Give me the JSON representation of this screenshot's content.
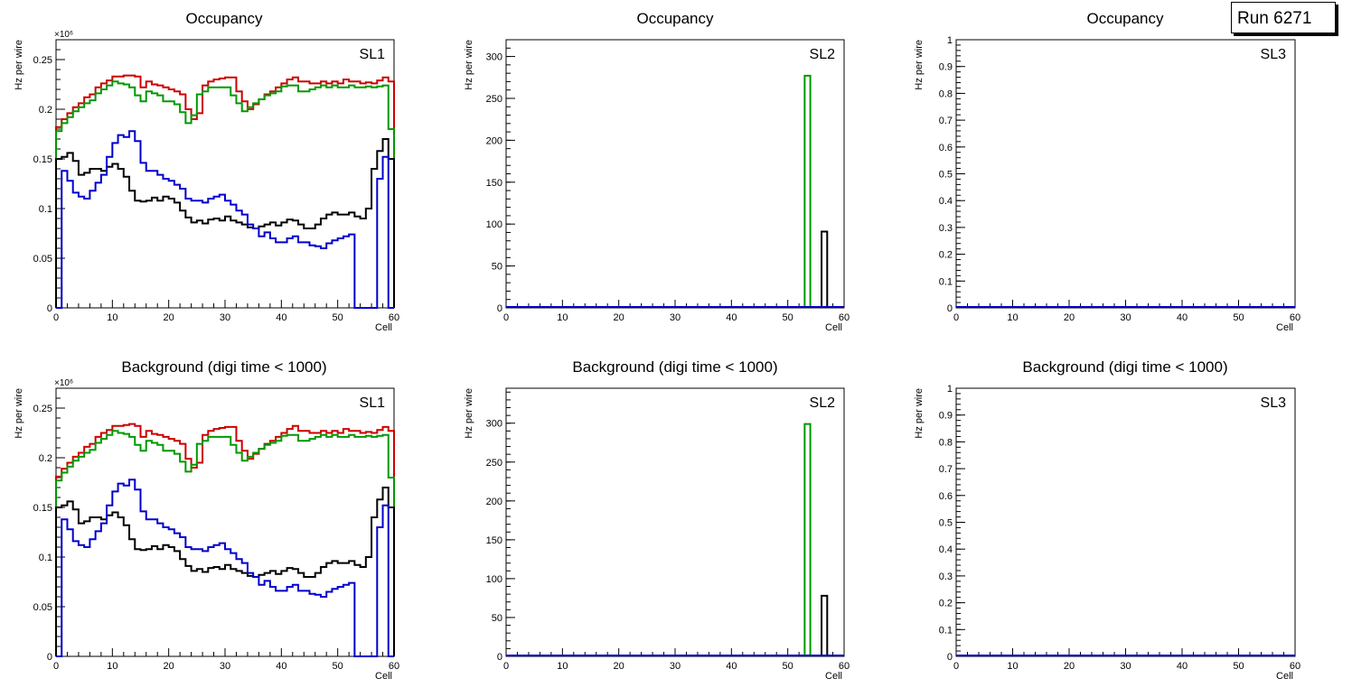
{
  "canvas_label": "Run 6271",
  "colors": {
    "red": "#cc0000",
    "green": "#009900",
    "black": "#000000",
    "blue": "#0000cc"
  },
  "chart_data": [
    {
      "type": "histogram",
      "title": "Occupancy",
      "label": "SL1",
      "xlabel": "Cell",
      "ylabel": "Hz per wire",
      "xlim": [
        0,
        60
      ],
      "ylim": [
        0,
        0.27
      ],
      "multiplier": "×10⁶",
      "xticks": [
        "0",
        "10",
        "20",
        "30",
        "40",
        "50",
        "60"
      ],
      "yticks": [
        "0",
        "0.05",
        "0.1",
        "0.15",
        "0.2",
        "0.25"
      ],
      "series": [
        {
          "name": "red",
          "color": "red",
          "values": [
            0.182,
            0.19,
            0.196,
            0.202,
            0.206,
            0.212,
            0.215,
            0.222,
            0.226,
            0.229,
            0.233,
            0.233,
            0.234,
            0.234,
            0.233,
            0.222,
            0.228,
            0.225,
            0.224,
            0.222,
            0.22,
            0.218,
            0.215,
            0.2,
            0.19,
            0.196,
            0.224,
            0.228,
            0.23,
            0.231,
            0.232,
            0.232,
            0.218,
            0.208,
            0.2,
            0.205,
            0.21,
            0.215,
            0.218,
            0.222,
            0.226,
            0.23,
            0.232,
            0.228,
            0.228,
            0.226,
            0.226,
            0.228,
            0.226,
            0.228,
            0.226,
            0.23,
            0.228,
            0.228,
            0.226,
            0.227,
            0.226,
            0.229,
            0.232,
            0.228
          ]
        },
        {
          "name": "green",
          "color": "green",
          "values": [
            0.178,
            0.186,
            0.192,
            0.198,
            0.202,
            0.206,
            0.209,
            0.216,
            0.22,
            0.224,
            0.228,
            0.226,
            0.225,
            0.222,
            0.214,
            0.208,
            0.218,
            0.216,
            0.214,
            0.208,
            0.208,
            0.205,
            0.197,
            0.186,
            0.194,
            0.215,
            0.218,
            0.222,
            0.222,
            0.222,
            0.222,
            0.214,
            0.206,
            0.198,
            0.202,
            0.206,
            0.21,
            0.214,
            0.216,
            0.218,
            0.223,
            0.224,
            0.224,
            0.218,
            0.218,
            0.22,
            0.222,
            0.224,
            0.222,
            0.224,
            0.222,
            0.222,
            0.224,
            0.222,
            0.222,
            0.223,
            0.222,
            0.223,
            0.224,
            0.18
          ]
        },
        {
          "name": "black",
          "color": "black",
          "values": [
            0.15,
            0.152,
            0.156,
            0.148,
            0.134,
            0.136,
            0.14,
            0.14,
            0.138,
            0.142,
            0.145,
            0.14,
            0.132,
            0.118,
            0.108,
            0.107,
            0.108,
            0.111,
            0.108,
            0.112,
            0.11,
            0.106,
            0.098,
            0.091,
            0.086,
            0.088,
            0.085,
            0.089,
            0.09,
            0.088,
            0.092,
            0.088,
            0.086,
            0.084,
            0.081,
            0.08,
            0.082,
            0.084,
            0.086,
            0.083,
            0.086,
            0.089,
            0.088,
            0.084,
            0.08,
            0.08,
            0.084,
            0.09,
            0.094,
            0.096,
            0.094,
            0.094,
            0.096,
            0.092,
            0.09,
            0.1,
            0.14,
            0.158,
            0.17,
            0.15
          ]
        },
        {
          "name": "blue",
          "color": "blue",
          "values": [
            0.0,
            0.138,
            0.128,
            0.116,
            0.112,
            0.11,
            0.118,
            0.126,
            0.134,
            0.152,
            0.166,
            0.174,
            0.172,
            0.178,
            0.168,
            0.146,
            0.138,
            0.138,
            0.134,
            0.13,
            0.128,
            0.124,
            0.12,
            0.11,
            0.108,
            0.108,
            0.106,
            0.11,
            0.112,
            0.114,
            0.108,
            0.104,
            0.098,
            0.094,
            0.084,
            0.08,
            0.072,
            0.076,
            0.07,
            0.066,
            0.066,
            0.07,
            0.072,
            0.066,
            0.066,
            0.063,
            0.062,
            0.06,
            0.065,
            0.068,
            0.07,
            0.072,
            0.074,
            0.0,
            0.0,
            0.0,
            0.0,
            0.13,
            0.152,
            0.0
          ]
        }
      ]
    },
    {
      "type": "histogram",
      "title": "Occupancy",
      "label": "SL2",
      "xlabel": "Cell",
      "ylabel": "Hz per wire",
      "xlim": [
        0,
        60
      ],
      "ylim": [
        0,
        320
      ],
      "multiplier": "",
      "xticks": [
        "0",
        "10",
        "20",
        "30",
        "40",
        "50",
        "60"
      ],
      "yticks": [
        "0",
        "50",
        "100",
        "150",
        "200",
        "250",
        "300"
      ],
      "series": [
        {
          "name": "green",
          "color": "green",
          "bins": [
            {
              "x0": 53,
              "x1": 54,
              "value": 277
            }
          ]
        },
        {
          "name": "black",
          "color": "black",
          "bins": [
            {
              "x0": 56,
              "x1": 57,
              "value": 91
            }
          ]
        },
        {
          "name": "blue",
          "color": "blue",
          "baseline": true
        }
      ]
    },
    {
      "type": "histogram",
      "title": "Occupancy",
      "label": "SL3",
      "xlabel": "Cell",
      "ylabel": "Hz per wire",
      "xlim": [
        0,
        60
      ],
      "ylim": [
        0,
        1
      ],
      "multiplier": "",
      "xticks": [
        "0",
        "10",
        "20",
        "30",
        "40",
        "50",
        "60"
      ],
      "yticks": [
        "0",
        "0.1",
        "0.2",
        "0.3",
        "0.4",
        "0.5",
        "0.6",
        "0.7",
        "0.8",
        "0.9",
        "1"
      ],
      "series": [
        {
          "name": "blue",
          "color": "blue",
          "baseline": true
        }
      ]
    },
    {
      "type": "histogram",
      "title": "Background (digi time < 1000)",
      "label": "SL1",
      "xlabel": "Cell",
      "ylabel": "Hz per wire",
      "xlim": [
        0,
        60
      ],
      "ylim": [
        0,
        0.27
      ],
      "multiplier": "×10⁶",
      "xticks": [
        "0",
        "10",
        "20",
        "30",
        "40",
        "50",
        "60"
      ],
      "yticks": [
        "0",
        "0.05",
        "0.1",
        "0.15",
        "0.2",
        "0.25"
      ],
      "series": [
        {
          "name": "red",
          "color": "red",
          "values": [
            0.181,
            0.189,
            0.195,
            0.201,
            0.205,
            0.211,
            0.214,
            0.221,
            0.225,
            0.228,
            0.232,
            0.232,
            0.233,
            0.234,
            0.232,
            0.221,
            0.227,
            0.224,
            0.223,
            0.221,
            0.219,
            0.217,
            0.214,
            0.199,
            0.19,
            0.195,
            0.223,
            0.227,
            0.229,
            0.23,
            0.231,
            0.231,
            0.217,
            0.207,
            0.199,
            0.204,
            0.209,
            0.214,
            0.217,
            0.221,
            0.225,
            0.229,
            0.232,
            0.227,
            0.227,
            0.225,
            0.225,
            0.227,
            0.225,
            0.227,
            0.225,
            0.229,
            0.227,
            0.227,
            0.225,
            0.226,
            0.225,
            0.228,
            0.231,
            0.227
          ]
        },
        {
          "name": "green",
          "color": "green",
          "values": [
            0.177,
            0.185,
            0.191,
            0.197,
            0.201,
            0.205,
            0.208,
            0.215,
            0.219,
            0.223,
            0.227,
            0.225,
            0.224,
            0.221,
            0.213,
            0.207,
            0.217,
            0.215,
            0.213,
            0.207,
            0.207,
            0.204,
            0.196,
            0.186,
            0.193,
            0.214,
            0.217,
            0.221,
            0.221,
            0.221,
            0.221,
            0.213,
            0.205,
            0.197,
            0.201,
            0.205,
            0.209,
            0.213,
            0.215,
            0.217,
            0.222,
            0.223,
            0.223,
            0.217,
            0.217,
            0.219,
            0.221,
            0.223,
            0.221,
            0.223,
            0.221,
            0.221,
            0.223,
            0.221,
            0.221,
            0.222,
            0.221,
            0.222,
            0.223,
            0.18
          ]
        },
        {
          "name": "black",
          "color": "black",
          "values": [
            0.15,
            0.152,
            0.156,
            0.148,
            0.134,
            0.136,
            0.14,
            0.14,
            0.138,
            0.142,
            0.145,
            0.14,
            0.132,
            0.118,
            0.108,
            0.107,
            0.108,
            0.111,
            0.108,
            0.112,
            0.11,
            0.106,
            0.098,
            0.091,
            0.086,
            0.088,
            0.085,
            0.089,
            0.09,
            0.088,
            0.092,
            0.088,
            0.086,
            0.084,
            0.081,
            0.08,
            0.082,
            0.084,
            0.086,
            0.083,
            0.086,
            0.089,
            0.088,
            0.084,
            0.08,
            0.08,
            0.084,
            0.09,
            0.094,
            0.096,
            0.094,
            0.094,
            0.096,
            0.092,
            0.09,
            0.1,
            0.14,
            0.158,
            0.17,
            0.15
          ]
        },
        {
          "name": "blue",
          "color": "blue",
          "values": [
            0.0,
            0.138,
            0.128,
            0.116,
            0.112,
            0.11,
            0.118,
            0.126,
            0.134,
            0.152,
            0.166,
            0.174,
            0.172,
            0.178,
            0.168,
            0.146,
            0.138,
            0.138,
            0.134,
            0.13,
            0.128,
            0.124,
            0.12,
            0.11,
            0.108,
            0.108,
            0.106,
            0.11,
            0.112,
            0.114,
            0.108,
            0.104,
            0.098,
            0.094,
            0.084,
            0.08,
            0.072,
            0.076,
            0.07,
            0.066,
            0.066,
            0.07,
            0.072,
            0.066,
            0.066,
            0.063,
            0.062,
            0.06,
            0.065,
            0.068,
            0.07,
            0.072,
            0.074,
            0.0,
            0.0,
            0.0,
            0.0,
            0.13,
            0.152,
            0.0
          ]
        }
      ]
    },
    {
      "type": "histogram",
      "title": "Background (digi time < 1000)",
      "label": "SL2",
      "xlabel": "Cell",
      "ylabel": "Hz per wire",
      "xlim": [
        0,
        60
      ],
      "ylim": [
        0,
        345
      ],
      "multiplier": "",
      "xticks": [
        "0",
        "10",
        "20",
        "30",
        "40",
        "50",
        "60"
      ],
      "yticks": [
        "0",
        "50",
        "100",
        "150",
        "200",
        "250",
        "300"
      ],
      "series": [
        {
          "name": "green",
          "color": "green",
          "bins": [
            {
              "x0": 53,
              "x1": 54,
              "value": 299
            }
          ]
        },
        {
          "name": "black",
          "color": "black",
          "bins": [
            {
              "x0": 56,
              "x1": 57,
              "value": 78
            }
          ]
        },
        {
          "name": "blue",
          "color": "blue",
          "baseline": true
        }
      ]
    },
    {
      "type": "histogram",
      "title": "Background (digi time < 1000)",
      "label": "SL3",
      "xlabel": "Cell",
      "ylabel": "Hz per wire",
      "xlim": [
        0,
        60
      ],
      "ylim": [
        0,
        1
      ],
      "multiplier": "",
      "xticks": [
        "0",
        "10",
        "20",
        "30",
        "40",
        "50",
        "60"
      ],
      "yticks": [
        "0",
        "0.1",
        "0.2",
        "0.3",
        "0.4",
        "0.5",
        "0.6",
        "0.7",
        "0.8",
        "0.9",
        "1"
      ],
      "series": [
        {
          "name": "blue",
          "color": "blue",
          "baseline": true
        }
      ]
    }
  ]
}
